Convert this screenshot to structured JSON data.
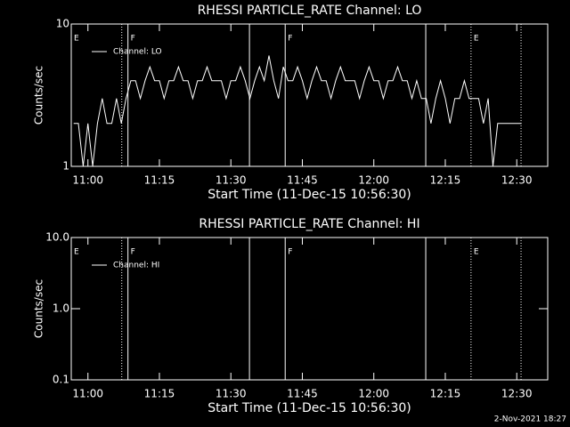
{
  "chart_data": [
    {
      "type": "line",
      "title": "RHESSI PARTICLE_RATE Channel: LO",
      "xlabel": "Start Time (11-Dec-15 10:56:30)",
      "ylabel": "Counts/sec",
      "x": [
        657,
        658,
        659,
        660,
        661,
        662,
        663,
        664,
        665,
        666,
        667,
        668,
        669,
        670,
        671,
        672,
        673,
        674,
        675,
        676,
        677,
        678,
        679,
        680,
        681,
        682,
        683,
        684,
        685,
        686,
        687,
        688,
        689,
        690,
        691,
        692,
        693,
        694,
        695,
        696,
        697,
        698,
        699,
        700,
        701,
        702,
        703,
        704,
        705,
        706,
        707,
        708,
        709,
        710,
        711,
        712,
        713,
        714,
        715,
        716,
        717,
        718,
        719,
        720,
        721,
        722,
        723,
        724,
        725,
        726,
        727,
        728,
        729,
        730,
        731,
        732,
        733,
        734,
        735,
        736,
        737,
        738,
        739,
        740,
        741,
        742,
        743,
        744,
        745,
        746,
        747,
        748,
        749,
        750,
        751
      ],
      "series": [
        {
          "name": "Channel: LO",
          "color": "#ffffff",
          "values": [
            2,
            2,
            1,
            2,
            1,
            2,
            3,
            2,
            2,
            3,
            2,
            3,
            4,
            4,
            3,
            4,
            5,
            4,
            4,
            3,
            4,
            4,
            5,
            4,
            4,
            3,
            4,
            4,
            5,
            4,
            4,
            4,
            3,
            4,
            4,
            5,
            4,
            3,
            4,
            5,
            4,
            6,
            4,
            3,
            5,
            4,
            4,
            5,
            4,
            3,
            4,
            5,
            4,
            4,
            3,
            4,
            5,
            4,
            4,
            4,
            3,
            4,
            5,
            4,
            4,
            3,
            4,
            4,
            5,
            4,
            4,
            3,
            4,
            3,
            3,
            2,
            3,
            4,
            3,
            2,
            3,
            3,
            4,
            3,
            3,
            3,
            2,
            3,
            1,
            2,
            2,
            2,
            2,
            2,
            2
          ]
        }
      ],
      "xlim": [
        656.5,
        756.5
      ],
      "xticks": [
        {
          "value": 660,
          "label": "11:00"
        },
        {
          "value": 675,
          "label": "11:15"
        },
        {
          "value": 690,
          "label": "11:30"
        },
        {
          "value": 705,
          "label": "11:45"
        },
        {
          "value": 720,
          "label": "12:00"
        },
        {
          "value": 735,
          "label": "12:15"
        },
        {
          "value": 750,
          "label": "12:30"
        }
      ],
      "ylim": [
        1,
        10
      ],
      "yticks": [
        1,
        10
      ],
      "log_y": true,
      "legend": "upper left",
      "markers": [
        {
          "x": 656.5,
          "style": "dotted",
          "label": "E"
        },
        {
          "x": 667.1,
          "style": "dotted"
        },
        {
          "x": 668.4,
          "style": "solid",
          "label": "F"
        },
        {
          "x": 693.9,
          "style": "solid"
        },
        {
          "x": 701.4,
          "style": "solid",
          "label": "F"
        },
        {
          "x": 730.9,
          "style": "solid"
        },
        {
          "x": 740.4,
          "style": "dotted",
          "label": "E"
        },
        {
          "x": 750.9,
          "style": "dotted"
        }
      ]
    },
    {
      "type": "line",
      "title": "RHESSI PARTICLE_RATE Channel: HI",
      "xlabel": "Start Time (11-Dec-15 10:56:30)",
      "ylabel": "Counts/sec",
      "x": [],
      "series": [
        {
          "name": "Channel: HI",
          "color": "#ffffff",
          "values": []
        }
      ],
      "xlim": [
        656.5,
        756.5
      ],
      "xticks": [
        {
          "value": 660,
          "label": "11:00"
        },
        {
          "value": 675,
          "label": "11:15"
        },
        {
          "value": 690,
          "label": "11:30"
        },
        {
          "value": 705,
          "label": "11:45"
        },
        {
          "value": 720,
          "label": "12:00"
        },
        {
          "value": 735,
          "label": "12:15"
        },
        {
          "value": 750,
          "label": "12:30"
        }
      ],
      "ylim": [
        0.1,
        10
      ],
      "yticks": [
        0.1,
        {
          "value": 1,
          "label": "1.0"
        },
        {
          "value": 10,
          "label": "10.0"
        }
      ],
      "log_y": true,
      "legend": "upper left",
      "markers": [
        {
          "x": 656.5,
          "style": "dotted",
          "label": "E"
        },
        {
          "x": 667.1,
          "style": "dotted"
        },
        {
          "x": 668.4,
          "style": "solid",
          "label": "F"
        },
        {
          "x": 693.9,
          "style": "solid"
        },
        {
          "x": 701.4,
          "style": "solid",
          "label": "F"
        },
        {
          "x": 730.9,
          "style": "solid"
        },
        {
          "x": 740.4,
          "style": "dotted",
          "label": "E"
        },
        {
          "x": 750.9,
          "style": "dotted"
        }
      ]
    }
  ],
  "timestamp": "2-Nov-2021 18:27"
}
